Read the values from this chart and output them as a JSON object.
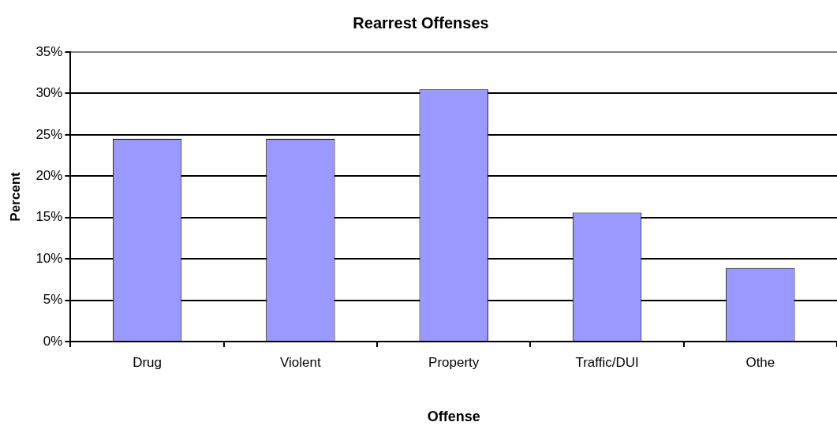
{
  "chart_data": {
    "type": "bar",
    "title": "Rearrest Offenses",
    "xlabel": "Offense",
    "ylabel": "Percent",
    "categories": [
      "Drug",
      "Violent",
      "Property",
      "Traffic/DUI",
      "Othe"
    ],
    "values": [
      24.5,
      24.5,
      30.5,
      15.6,
      8.9
    ],
    "color": "#9999ff",
    "ylim": [
      0,
      35
    ],
    "yticks": [
      {
        "value": 0,
        "label": "0%"
      },
      {
        "value": 5,
        "label": "5%"
      },
      {
        "value": 10,
        "label": "10%"
      },
      {
        "value": 15,
        "label": "15%"
      },
      {
        "value": 20,
        "label": "20%"
      },
      {
        "value": 25,
        "label": "25%"
      },
      {
        "value": 30,
        "label": "30%"
      },
      {
        "value": 35,
        "label": "35%"
      }
    ],
    "grid": "y",
    "legend": false
  }
}
